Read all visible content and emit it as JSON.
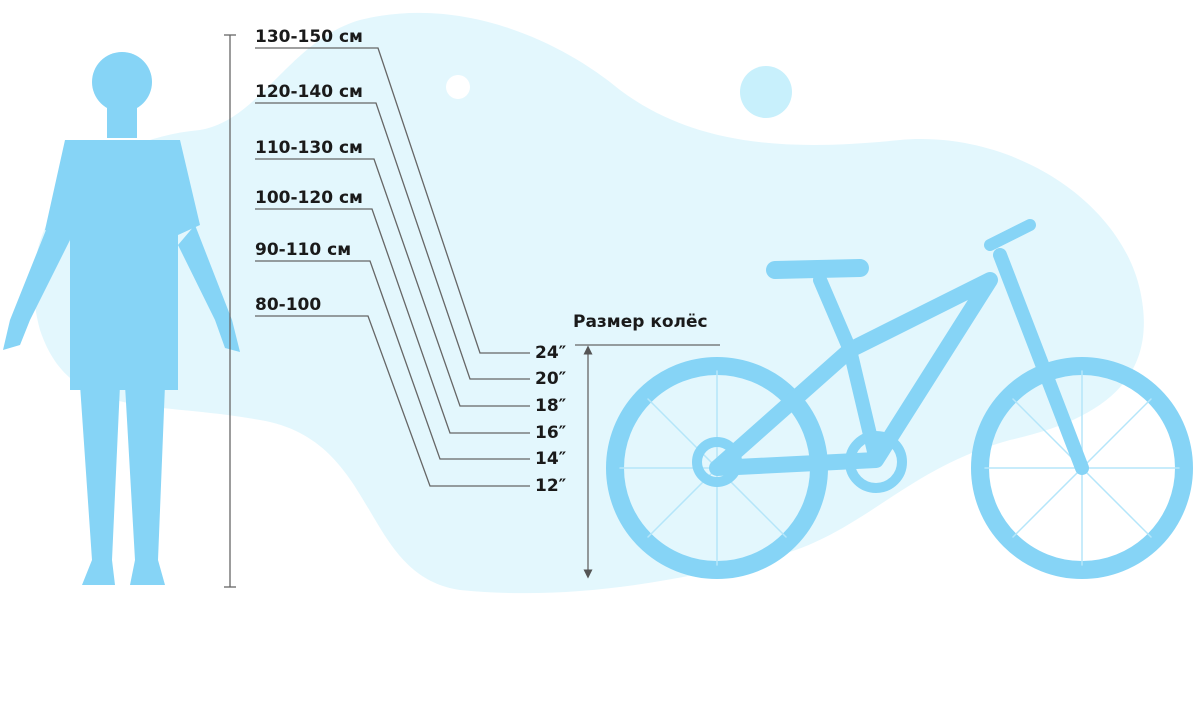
{
  "title": "Размер колёс",
  "pairs": [
    {
      "height": "130-150 см",
      "wheel": "24″"
    },
    {
      "height": "120-140 см",
      "wheel": "20″"
    },
    {
      "height": "110-130 см",
      "wheel": "18″"
    },
    {
      "height": "100-120 см",
      "wheel": "16″"
    },
    {
      "height": "90-110 см",
      "wheel": "14″"
    },
    {
      "height": "80-100",
      "wheel": "12″"
    }
  ]
}
